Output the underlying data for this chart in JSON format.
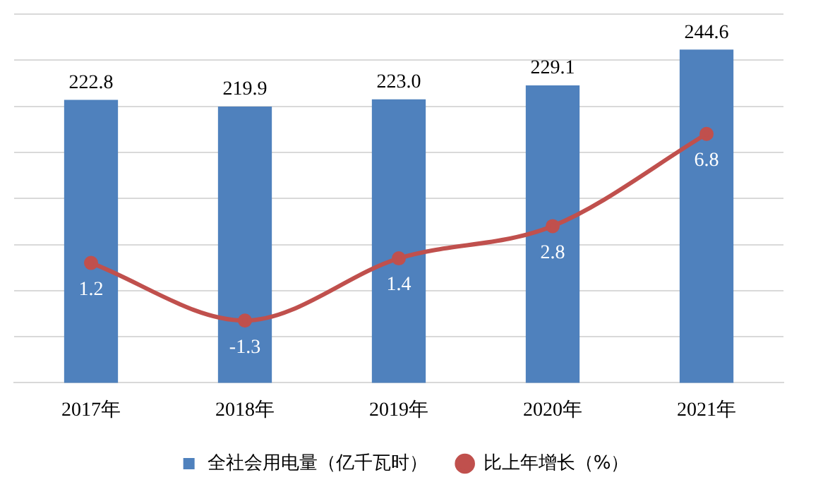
{
  "chart_data": {
    "type": "bar",
    "categories": [
      "2017年",
      "2018年",
      "2019年",
      "2020年",
      "2021年"
    ],
    "series": [
      {
        "name": "全社会用电量（亿千瓦时）",
        "color": "#4f81bd",
        "values": [
          222.8,
          219.9,
          223.0,
          229.1,
          244.6
        ],
        "value_labels": [
          "222.8",
          "219.9",
          "223.0",
          "229.1",
          "244.6"
        ]
      },
      {
        "name": "比上年增长（%）",
        "type": "line",
        "axis": "y2",
        "color": "#c0504d",
        "values": [
          1.2,
          -1.3,
          1.4,
          2.8,
          6.8
        ],
        "value_labels": [
          "1.2",
          "-1.3",
          "1.4",
          "2.8",
          "6.8"
        ],
        "marker": "circle"
      }
    ],
    "ylim": [
      100,
      260
    ],
    "yticks": [
      100,
      120,
      140,
      160,
      180,
      200,
      220,
      240,
      260
    ],
    "y2lim": [
      -4,
      12
    ],
    "tick_labels": "x",
    "grid": "y",
    "legend": "bottom"
  }
}
